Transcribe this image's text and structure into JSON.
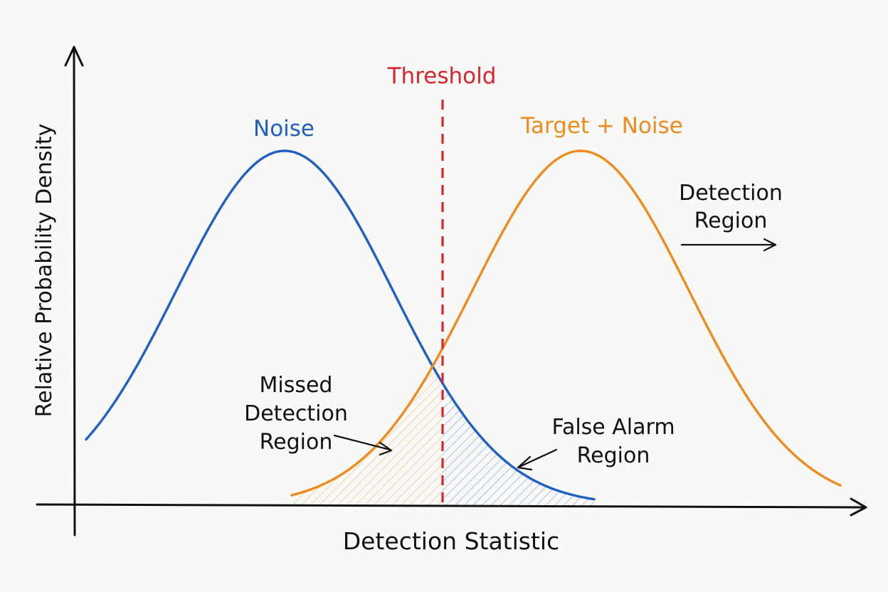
{
  "labels": {
    "threshold": "Threshold",
    "noise": "Noise",
    "target_noise": "Target + Noise",
    "detection_region_1": "Detection",
    "detection_region_2": "Region",
    "missed_1": "Missed",
    "missed_2": "Detection",
    "missed_3": "Region",
    "false_alarm_1": "False Alarm",
    "false_alarm_2": "Region",
    "x_axis": "Detection Statistic",
    "y_axis": "Relative Probability Density"
  },
  "colors": {
    "noise": "#1f5fc4",
    "target": "#f08a1e",
    "threshold": "#d9252e",
    "ink": "#111111"
  }
}
